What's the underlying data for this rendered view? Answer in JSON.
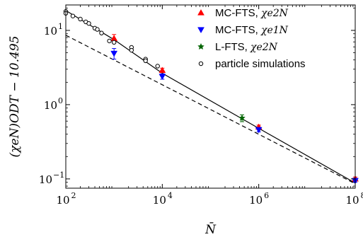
{
  "chart_data": {
    "type": "scatter",
    "xlabel": "N̄",
    "ylabel": "(χeN)ODT − 10.495",
    "x_scale": "log",
    "y_scale": "log",
    "xlim": [
      100,
      100000000
    ],
    "ylim": [
      0.075,
      22
    ],
    "x_ticks": [
      {
        "value": 100,
        "base": "10",
        "exp": "2"
      },
      {
        "value": 10000,
        "base": "10",
        "exp": "4"
      },
      {
        "value": 1000000,
        "base": "10",
        "exp": "6"
      },
      {
        "value": 100000000,
        "base": "10",
        "exp": "8"
      }
    ],
    "y_ticks": [
      {
        "value": 0.1,
        "base": "10",
        "exp": "−1"
      },
      {
        "value": 1,
        "base": "10",
        "exp": "0"
      },
      {
        "value": 10,
        "base": "10",
        "exp": "1"
      }
    ],
    "legend_position": "top-right",
    "series": [
      {
        "name": "MC-FTS, χe2N",
        "legend_main": "MC-FTS, ",
        "legend_math": "χe2N",
        "marker": "triangle-up",
        "color": "#ff0000",
        "points": [
          {
            "x": 1000,
            "y": 7.8,
            "err": 1.0
          },
          {
            "x": 10000,
            "y": 2.9,
            "err": 0.2
          },
          {
            "x": 1000000,
            "y": 0.5,
            "err": 0.03
          },
          {
            "x": 100000000,
            "y": 0.1,
            "err": 0.006
          }
        ]
      },
      {
        "name": "MC-FTS, χe1N",
        "legend_main": "MC-FTS, ",
        "legend_math": "χe1N",
        "marker": "triangle-down",
        "color": "#0000ff",
        "points": [
          {
            "x": 1000,
            "y": 4.9,
            "err": 0.8
          },
          {
            "x": 10000,
            "y": 2.4,
            "err": 0.2
          },
          {
            "x": 1000000,
            "y": 0.46,
            "err": 0.03
          },
          {
            "x": 100000000,
            "y": 0.095,
            "err": 0.005
          }
        ]
      },
      {
        "name": "L-FTS, χe2N",
        "legend_main": "L-FTS, ",
        "legend_math": "χe2N",
        "marker": "star",
        "color": "#006400",
        "points": [
          {
            "x": 450000,
            "y": 0.66,
            "err": 0.07
          }
        ]
      },
      {
        "name": "particle simulations",
        "legend_main": "particle simulations",
        "legend_math": "",
        "marker": "circle-open",
        "color": "#000000",
        "points": [
          {
            "x": 100,
            "y": 18
          },
          {
            "x": 100,
            "y": 17
          },
          {
            "x": 140,
            "y": 15.6
          },
          {
            "x": 200,
            "y": 14.2
          },
          {
            "x": 260,
            "y": 13.0
          },
          {
            "x": 300,
            "y": 12.4
          },
          {
            "x": 400,
            "y": 10.7
          },
          {
            "x": 450,
            "y": 10.3
          },
          {
            "x": 550,
            "y": 9.2
          },
          {
            "x": 800,
            "y": 7.2
          },
          {
            "x": 1000,
            "y": 6.9
          },
          {
            "x": 2300,
            "y": 5.9
          },
          {
            "x": 2300,
            "y": 5.4
          },
          {
            "x": 4500,
            "y": 4.1
          },
          {
            "x": 4500,
            "y": 3.9
          },
          {
            "x": 8000,
            "y": 3.3
          }
        ]
      }
    ],
    "lines": [
      {
        "style": "solid",
        "color": "#000000",
        "points": [
          [
            100,
            18.5
          ],
          [
            1000,
            7.5
          ],
          [
            10000,
            2.65
          ],
          [
            1000000,
            0.48
          ],
          [
            100000000,
            0.088
          ]
        ]
      },
      {
        "style": "dashed",
        "color": "#000000",
        "points": [
          [
            100,
            8.6
          ],
          [
            100000000,
            0.086
          ]
        ]
      }
    ]
  }
}
